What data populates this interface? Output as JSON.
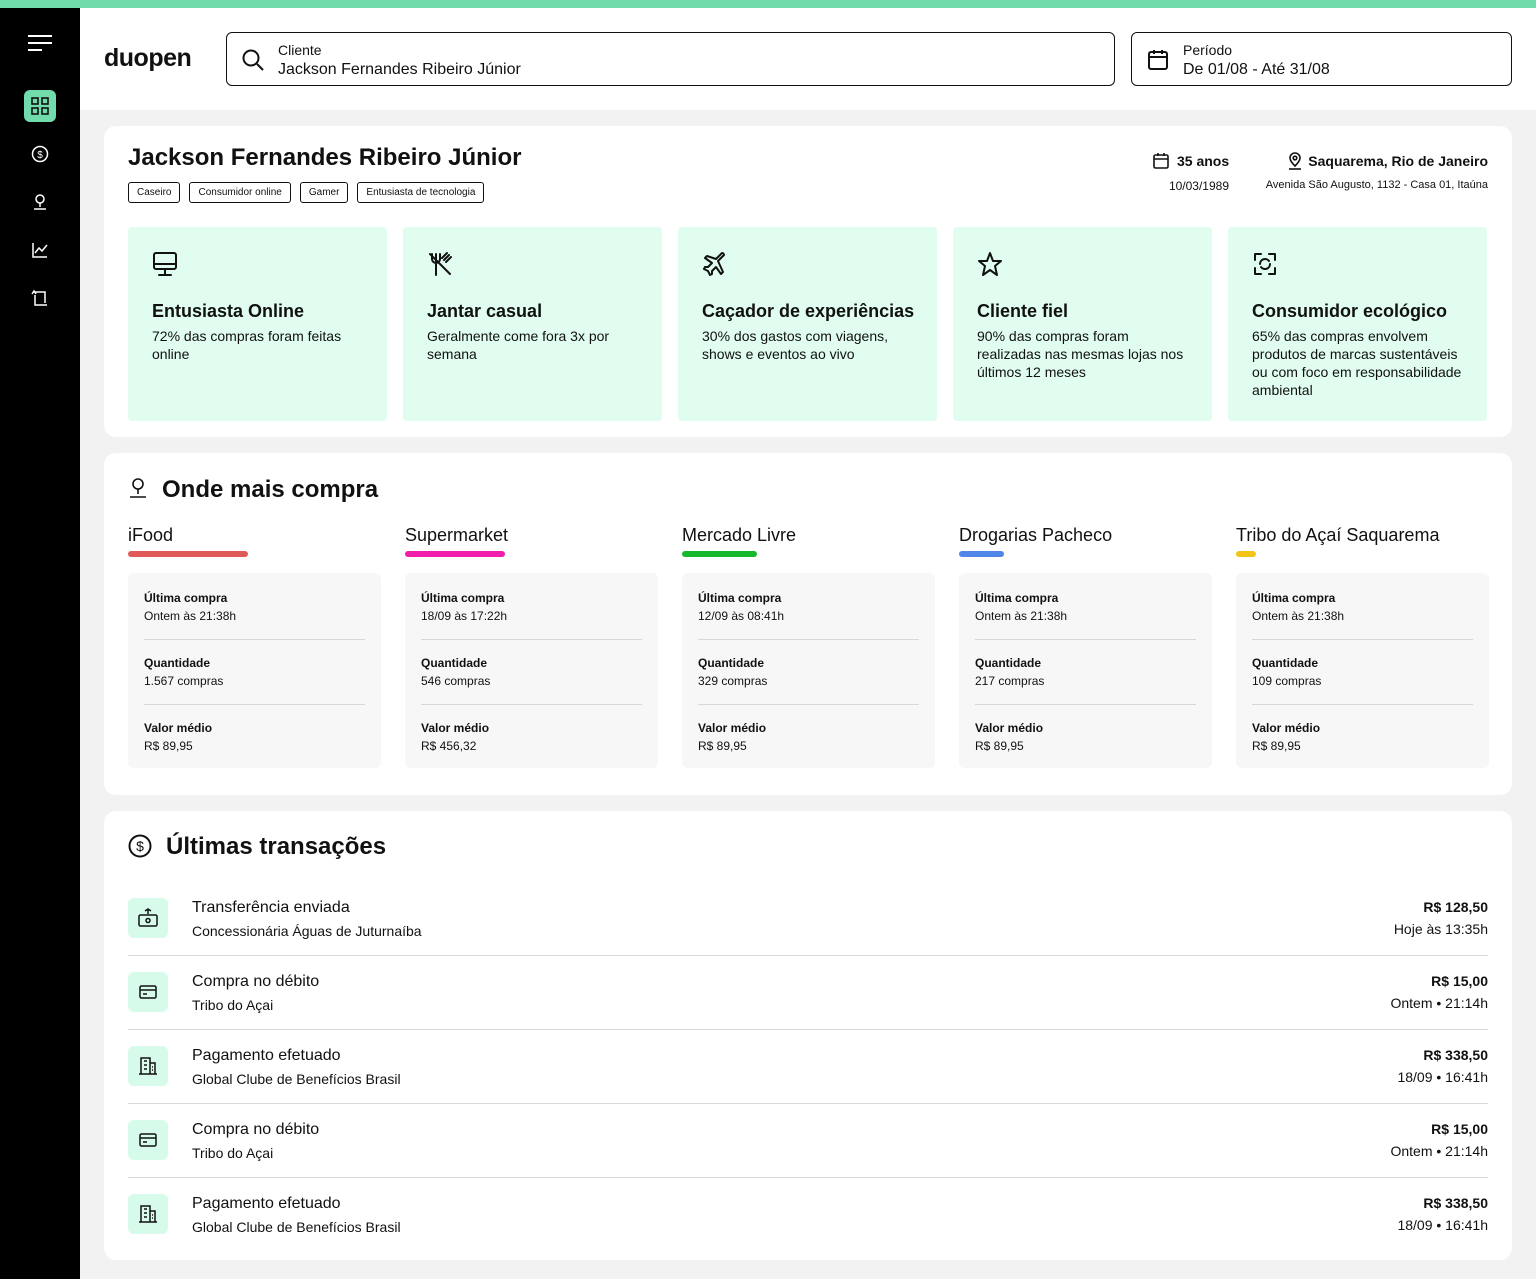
{
  "header": {
    "logo": "duopen",
    "client_label": "Cliente",
    "client_value": "Jackson Fernandes Ribeiro Júnior",
    "period_label": "Período",
    "period_value": "De 01/08 - Até 31/08"
  },
  "profile": {
    "name": "Jackson Fernandes Ribeiro Júnior",
    "tags": [
      "Caseiro",
      "Consumidor online",
      "Gamer",
      "Entusiasta de tecnologia"
    ],
    "age": "35 anos",
    "birthdate": "10/03/1989",
    "city": "Saquarema, Rio de Janeiro",
    "address": "Avenida São Augusto, 1132 - Casa 01, Itaúna",
    "traits": [
      {
        "title": "Entusiasta Online",
        "text": "72% das compras foram feitas online"
      },
      {
        "title": "Jantar casual",
        "text": "Geralmente come fora 3x por semana"
      },
      {
        "title": "Caçador de experiências",
        "text": "30% dos gastos com viagens, shows e eventos ao vivo"
      },
      {
        "title": "Cliente fiel",
        "text": "90% das compras foram realizadas nas mesmas lojas nos últimos 12 meses"
      },
      {
        "title": "Consumidor ecológico",
        "text": "65% das compras envolvem produtos de marcas sustentáveis ou com foco em responsabilidade ambiental"
      }
    ]
  },
  "stores": {
    "title": "Onde mais compra",
    "items": [
      {
        "name": "iFood",
        "color": "#e05a5a",
        "last_label": "Última compra",
        "last": "Ontem às 21:38h",
        "qty_label": "Quantidade",
        "qty": "1.567 compras",
        "avg_label": "Valor médio",
        "avg": "R$ 89,95"
      },
      {
        "name": "Supermarket",
        "color": "#f01eaa",
        "last_label": "Última compra",
        "last": "18/09 às 17:22h",
        "qty_label": "Quantidade",
        "qty": "546 compras",
        "avg_label": "Valor médio",
        "avg": "R$ 456,32"
      },
      {
        "name": "Mercado Livre",
        "color": "#16b82c",
        "last_label": "Última compra",
        "last": "12/09 às 08:41h",
        "qty_label": "Quantidade",
        "qty": "329 compras",
        "avg_label": "Valor médio",
        "avg": "R$ 89,95"
      },
      {
        "name": "Drogarias Pacheco",
        "color": "#4f86e8",
        "last_label": "Última compra",
        "last": "Ontem às 21:38h",
        "qty_label": "Quantidade",
        "qty": "217 compras",
        "avg_label": "Valor médio",
        "avg": "R$ 89,95"
      },
      {
        "name": "Tribo do Açaí Saquarema",
        "color": "#f2c416",
        "last_label": "Última compra",
        "last": "Ontem às 21:38h",
        "qty_label": "Quantidade",
        "qty": "109 compras",
        "avg_label": "Valor médio",
        "avg": "R$ 89,95"
      }
    ]
  },
  "transactions": {
    "title": "Últimas transações",
    "items": [
      {
        "title": "Transferência enviada",
        "subtitle": "Concessionária Águas de Juturnaíba",
        "amount": "R$ 128,50",
        "time": "Hoje às 13:35h"
      },
      {
        "title": "Compra no débito",
        "subtitle": "Tribo do Açai",
        "amount": "R$ 15,00",
        "time": "Ontem • 21:14h"
      },
      {
        "title": "Pagamento efetuado",
        "subtitle": "Global Clube de Benefícios Brasil",
        "amount": "R$ 338,50",
        "time": "18/09 • 16:41h"
      },
      {
        "title": "Compra no débito",
        "subtitle": "Tribo do Açai",
        "amount": "R$ 15,00",
        "time": "Ontem • 21:14h"
      },
      {
        "title": "Pagamento efetuado",
        "subtitle": "Global Clube de Benefícios Brasil",
        "amount": "R$ 338,50",
        "time": "18/09 • 16:41h"
      }
    ]
  }
}
